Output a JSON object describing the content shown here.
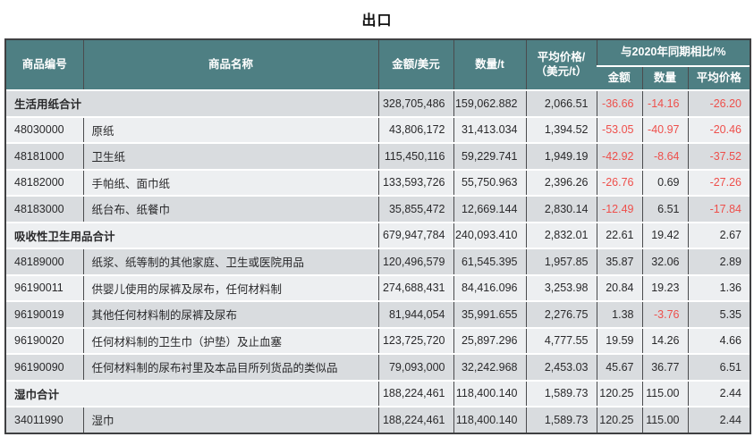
{
  "title": "出口",
  "colors": {
    "header_background": "#4e7f83",
    "header_text": "#ffffff",
    "negative_value": "#ee4f4b",
    "row_dark": "#d9dcdf",
    "row_light": "#edeff1"
  },
  "table": {
    "headers": {
      "code": "商品编号",
      "name": "商品名称",
      "amount": "金额/美元",
      "quantity": "数量/t",
      "avg_price_l1": "平均价格/",
      "avg_price_l2": "（美元/t）",
      "yoy": "与2020年同期相比/%",
      "yoy_amount": "金额",
      "yoy_quantity": "数量",
      "yoy_avg_price": "平均价格"
    },
    "rows": [
      {
        "code": "",
        "name": "生活用纸合计",
        "amount": "328,705,486",
        "qty": "159,062.882",
        "avg": "2,066.51",
        "y1": "-36.66",
        "y2": "-14.16",
        "y3": "-26.20"
      },
      {
        "code": "48030000",
        "name": "原纸",
        "amount": "43,806,172",
        "qty": "31,413.034",
        "avg": "1,394.52",
        "y1": "-53.05",
        "y2": "-40.97",
        "y3": "-20.46"
      },
      {
        "code": "48181000",
        "name": "卫生纸",
        "amount": "115,450,116",
        "qty": "59,229.741",
        "avg": "1,949.19",
        "y1": "-42.92",
        "y2": "-8.64",
        "y3": "-37.52"
      },
      {
        "code": "48182000",
        "name": "手帕纸、面巾纸",
        "amount": "133,593,726",
        "qty": "55,750.963",
        "avg": "2,396.26",
        "y1": "-26.76",
        "y2": "0.69",
        "y3": "-27.26"
      },
      {
        "code": "48183000",
        "name": "纸台布、纸餐巾",
        "amount": "35,855,472",
        "qty": "12,669.144",
        "avg": "2,830.14",
        "y1": "-12.49",
        "y2": "6.51",
        "y3": "-17.84"
      },
      {
        "code": "",
        "name": "吸收性卫生用品合计",
        "amount": "679,947,784",
        "qty": "240,093.410",
        "avg": "2,832.01",
        "y1": "22.61",
        "y2": "19.42",
        "y3": "2.67"
      },
      {
        "code": "48189000",
        "name": "纸浆、纸等制的其他家庭、卫生或医院用品",
        "amount": "120,496,579",
        "qty": "61,545.395",
        "avg": "1,957.85",
        "y1": "35.87",
        "y2": "32.06",
        "y3": "2.89"
      },
      {
        "code": "96190011",
        "name": "供婴儿使用的尿裤及尿布，任何材料制",
        "amount": "274,688,431",
        "qty": "84,416.096",
        "avg": "3,253.98",
        "y1": "20.84",
        "y2": "19.23",
        "y3": "1.36"
      },
      {
        "code": "96190019",
        "name": "其他任何材料制的尿裤及尿布",
        "amount": "81,944,054",
        "qty": "35,991.655",
        "avg": "2,276.75",
        "y1": "1.38",
        "y2": "-3.76",
        "y3": "5.35"
      },
      {
        "code": "96190020",
        "name": "任何材料制的卫生巾（护垫）及止血塞",
        "amount": "123,725,720",
        "qty": "25,897.296",
        "avg": "4,777.55",
        "y1": "19.59",
        "y2": "14.26",
        "y3": "4.66"
      },
      {
        "code": "96190090",
        "name": "任何材料制的尿布衬里及本品目所列货品的类似品",
        "amount": "79,093,000",
        "qty": "32,242.968",
        "avg": "2,453.03",
        "y1": "45.67",
        "y2": "36.77",
        "y3": "6.51"
      },
      {
        "code": "",
        "name": "湿巾合计",
        "amount": "188,224,461",
        "qty": "118,400.140",
        "avg": "1,589.73",
        "y1": "120.25",
        "y2": "115.00",
        "y3": "2.44"
      },
      {
        "code": "34011990",
        "name": "湿巾",
        "amount": "188,224,461",
        "qty": "118,400.140",
        "avg": "1,589.73",
        "y1": "120.25",
        "y2": "115.00",
        "y3": "2.44"
      }
    ]
  }
}
